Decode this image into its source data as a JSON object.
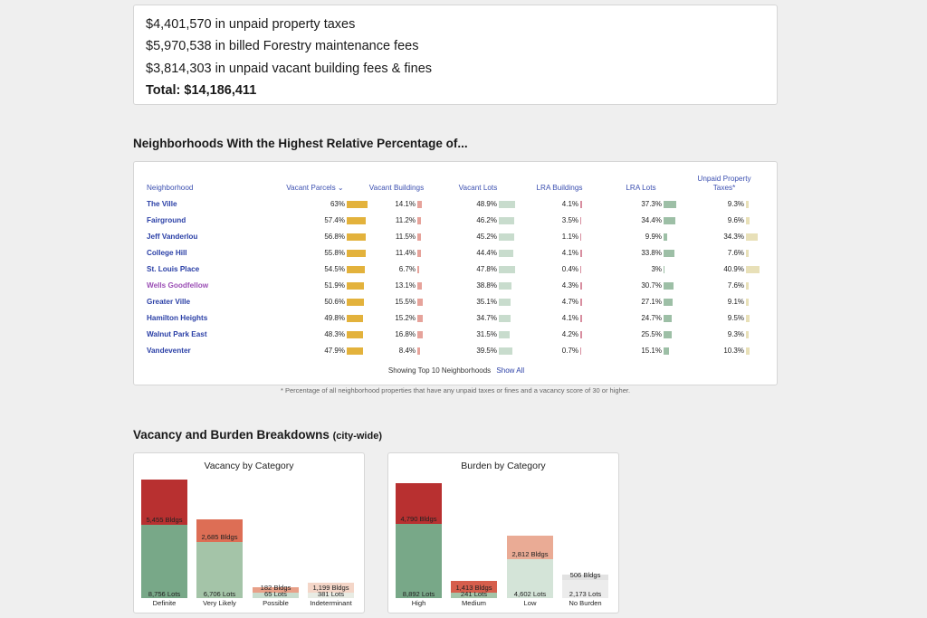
{
  "totals": {
    "line1": "$4,401,570 in unpaid property taxes",
    "line2": "$5,970,538 in billed Forestry maintenance fees",
    "line3": "$3,814,303 in unpaid vacant building fees & fines",
    "total": "Total: $14,186,411"
  },
  "neighborhoods": {
    "title": "Neighborhoods With the Highest Relative Percentage of...",
    "headers": {
      "neighborhood": "Neighborhood",
      "vacant_parcels": "Vacant Parcels ⌄",
      "vacant_buildings": "Vacant Buildings",
      "vacant_lots": "Vacant Lots",
      "lra_buildings": "LRA Buildings",
      "lra_lots": "LRA Lots",
      "unpaid_taxes": "Unpaid Property Taxes*"
    },
    "colors": {
      "vacant_parcels": "#e3b23c",
      "vacant_buildings": "#e6a39b",
      "vacant_lots": "#c8dccd",
      "lra_buildings": "#d88ea0",
      "lra_lots": "#9dbfa6",
      "unpaid_taxes": "#e8e0b8",
      "link": "#2a3fa6"
    },
    "rows": [
      {
        "name": "The Ville",
        "vp": "63%",
        "vb": "14.1%",
        "vl": "48.9%",
        "lb": "4.1%",
        "ll": "37.3%",
        "ut": "9.3%"
      },
      {
        "name": "Fairground",
        "vp": "57.4%",
        "vb": "11.2%",
        "vl": "46.2%",
        "lb": "3.5%",
        "ll": "34.4%",
        "ut": "9.6%"
      },
      {
        "name": "Jeff Vanderlou",
        "vp": "56.8%",
        "vb": "11.5%",
        "vl": "45.2%",
        "lb": "1.1%",
        "ll": "9.9%",
        "ut": "34.3%"
      },
      {
        "name": "College Hill",
        "vp": "55.8%",
        "vb": "11.4%",
        "vl": "44.4%",
        "lb": "4.1%",
        "ll": "33.8%",
        "ut": "7.6%"
      },
      {
        "name": "St. Louis Place",
        "vp": "54.5%",
        "vb": "6.7%",
        "vl": "47.8%",
        "lb": "0.4%",
        "ll": "3%",
        "ut": "40.9%"
      },
      {
        "name": "Wells Goodfellow",
        "vp": "51.9%",
        "vb": "13.1%",
        "vl": "38.8%",
        "lb": "4.3%",
        "ll": "30.7%",
        "ut": "7.6%"
      },
      {
        "name": "Greater Ville",
        "vp": "50.6%",
        "vb": "15.5%",
        "vl": "35.1%",
        "lb": "4.7%",
        "ll": "27.1%",
        "ut": "9.1%"
      },
      {
        "name": "Hamilton Heights",
        "vp": "49.8%",
        "vb": "15.2%",
        "vl": "34.7%",
        "lb": "4.1%",
        "ll": "24.7%",
        "ut": "9.5%"
      },
      {
        "name": "Walnut Park East",
        "vp": "48.3%",
        "vb": "16.8%",
        "vl": "31.5%",
        "lb": "4.2%",
        "ll": "25.5%",
        "ut": "9.3%"
      },
      {
        "name": "Vandeventer",
        "vp": "47.9%",
        "vb": "8.4%",
        "vl": "39.5%",
        "lb": "0.7%",
        "ll": "15.1%",
        "ut": "10.3%"
      }
    ],
    "footer_text": "Showing Top 10 Neighborhoods",
    "show_all": "Show All",
    "note": "* Percentage of all neighborhood properties that have any unpaid taxes or fines and a vacancy score of 30 or higher."
  },
  "breakdowns": {
    "title": "Vacancy and Burden Breakdowns",
    "subtitle": "(city-wide)"
  },
  "chart_data": [
    {
      "type": "bar",
      "title": "Vacancy by Category",
      "categories": [
        "Definite",
        "Very Likely",
        "Possible",
        "Indeterminant"
      ],
      "series": [
        {
          "values": [
            8756,
            6706,
            65,
            381
          ],
          "labels": [
            "8,756 Lots",
            "6,706 Lots",
            "65 Lots",
            "381 Lots"
          ]
        },
        {
          "values": [
            5455,
            2685,
            182,
            1199
          ],
          "labels": [
            "5,455 Bldgs",
            "2,685 Bldgs",
            "182 Bldgs",
            "1,199 Bldgs"
          ]
        }
      ],
      "colors": {
        "lots": [
          "#78a888",
          "#a4c4a8",
          "#c8dccd",
          "#e8ece4"
        ],
        "bldgs": [
          "#b83030",
          "#dd6e55",
          "#e8a088",
          "#f4d6c8"
        ]
      }
    },
    {
      "type": "bar",
      "title": "Burden by Category",
      "categories": [
        "High",
        "Medium",
        "Low",
        "No Burden"
      ],
      "series": [
        {
          "values": [
            8892,
            241,
            4602,
            2173
          ],
          "labels": [
            "8,892 Lots",
            "241 Lots",
            "4,602 Lots",
            "2,173 Lots"
          ]
        },
        {
          "values": [
            4790,
            1413,
            2812,
            506
          ],
          "labels": [
            "4,790 Bldgs",
            "1,413 Bldgs",
            "2,812 Bldgs",
            "506 Bldgs"
          ]
        }
      ],
      "colors": {
        "lots": [
          "#78a888",
          "#a4c4a8",
          "#d4e4d8",
          "#ececec"
        ],
        "bldgs": [
          "#b83030",
          "#d65e4c",
          "#eaab95",
          "#e2e2e2"
        ]
      }
    }
  ]
}
